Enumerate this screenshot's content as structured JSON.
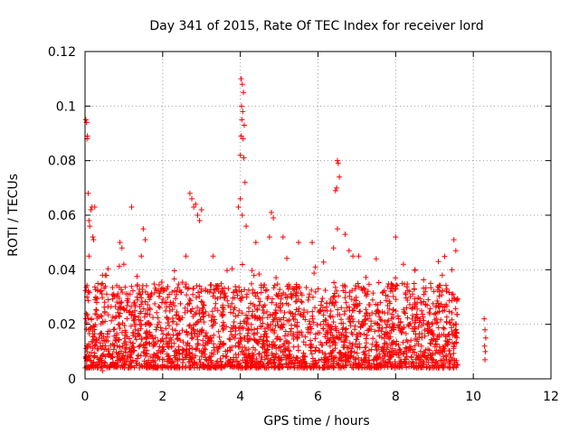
{
  "chart_data": {
    "type": "scatter",
    "title": "Day 341 of 2015, Rate Of TEC Index for receiver lord",
    "xlabel": "GPS time / hours",
    "ylabel": "ROTI / TECUs",
    "xlim": [
      0,
      12
    ],
    "ylim": [
      0,
      0.12
    ],
    "xticks": [
      "0",
      "2",
      "4",
      "6",
      "8",
      "10",
      "12"
    ],
    "yticks": [
      "0",
      "0.02",
      "0.04",
      "0.06",
      "0.08",
      "0.1",
      "0.12"
    ],
    "grid": true,
    "marker": "+",
    "marker_color": "#ff0000",
    "points_approx": [
      [
        0.02,
        0.095
      ],
      [
        0.04,
        0.094
      ],
      [
        0.06,
        0.089
      ],
      [
        0.05,
        0.088
      ],
      [
        0.08,
        0.068
      ],
      [
        0.1,
        0.058
      ],
      [
        0.12,
        0.056
      ],
      [
        0.15,
        0.062
      ],
      [
        0.18,
        0.063
      ],
      [
        0.2,
        0.052
      ],
      [
        0.22,
        0.051
      ],
      [
        0.25,
        0.063
      ],
      [
        0.05,
        0.03
      ],
      [
        0.1,
        0.045
      ],
      [
        0.3,
        0.028
      ],
      [
        0.45,
        0.038
      ],
      [
        0.5,
        0.005
      ],
      [
        0.45,
        0.003
      ],
      [
        0.9,
        0.05
      ],
      [
        0.95,
        0.048
      ],
      [
        1.0,
        0.042
      ],
      [
        1.2,
        0.063
      ],
      [
        1.5,
        0.055
      ],
      [
        1.55,
        0.051
      ],
      [
        1.45,
        0.045
      ],
      [
        2.7,
        0.068
      ],
      [
        2.75,
        0.066
      ],
      [
        2.8,
        0.063
      ],
      [
        2.85,
        0.064
      ],
      [
        2.9,
        0.06
      ],
      [
        2.95,
        0.058
      ],
      [
        3.0,
        0.062
      ],
      [
        2.6,
        0.045
      ],
      [
        3.3,
        0.045
      ],
      [
        4.02,
        0.11
      ],
      [
        4.05,
        0.108
      ],
      [
        4.08,
        0.105
      ],
      [
        4.03,
        0.1
      ],
      [
        4.06,
        0.098
      ],
      [
        4.04,
        0.095
      ],
      [
        4.1,
        0.093
      ],
      [
        4.02,
        0.089
      ],
      [
        4.07,
        0.088
      ],
      [
        4.0,
        0.082
      ],
      [
        4.09,
        0.081
      ],
      [
        4.12,
        0.072
      ],
      [
        4.0,
        0.066
      ],
      [
        4.05,
        0.06
      ],
      [
        4.15,
        0.056
      ],
      [
        3.95,
        0.063
      ],
      [
        4.4,
        0.05
      ],
      [
        4.8,
        0.061
      ],
      [
        4.85,
        0.059
      ],
      [
        4.75,
        0.052
      ],
      [
        5.1,
        0.052
      ],
      [
        5.5,
        0.05
      ],
      [
        5.85,
        0.05
      ],
      [
        6.5,
        0.08
      ],
      [
        6.52,
        0.079
      ],
      [
        6.48,
        0.07
      ],
      [
        6.45,
        0.069
      ],
      [
        6.55,
        0.074
      ],
      [
        6.5,
        0.055
      ],
      [
        6.4,
        0.048
      ],
      [
        6.7,
        0.053
      ],
      [
        6.8,
        0.047
      ],
      [
        6.9,
        0.045
      ],
      [
        7.05,
        0.045
      ],
      [
        7.5,
        0.044
      ],
      [
        8.0,
        0.052
      ],
      [
        8.2,
        0.042
      ],
      [
        8.5,
        0.04
      ],
      [
        8.9,
        0.035
      ],
      [
        9.1,
        0.043
      ],
      [
        9.2,
        0.038
      ],
      [
        9.5,
        0.051
      ],
      [
        9.55,
        0.047
      ],
      [
        9.45,
        0.04
      ],
      [
        10.28,
        0.022
      ],
      [
        10.3,
        0.018
      ],
      [
        10.32,
        0.015
      ],
      [
        10.29,
        0.012
      ],
      [
        10.31,
        0.01
      ],
      [
        10.3,
        0.007
      ]
    ],
    "dense_band": {
      "x_start": 0.0,
      "x_end": 9.6,
      "y_low": 0.002,
      "y_high": 0.035
    }
  }
}
